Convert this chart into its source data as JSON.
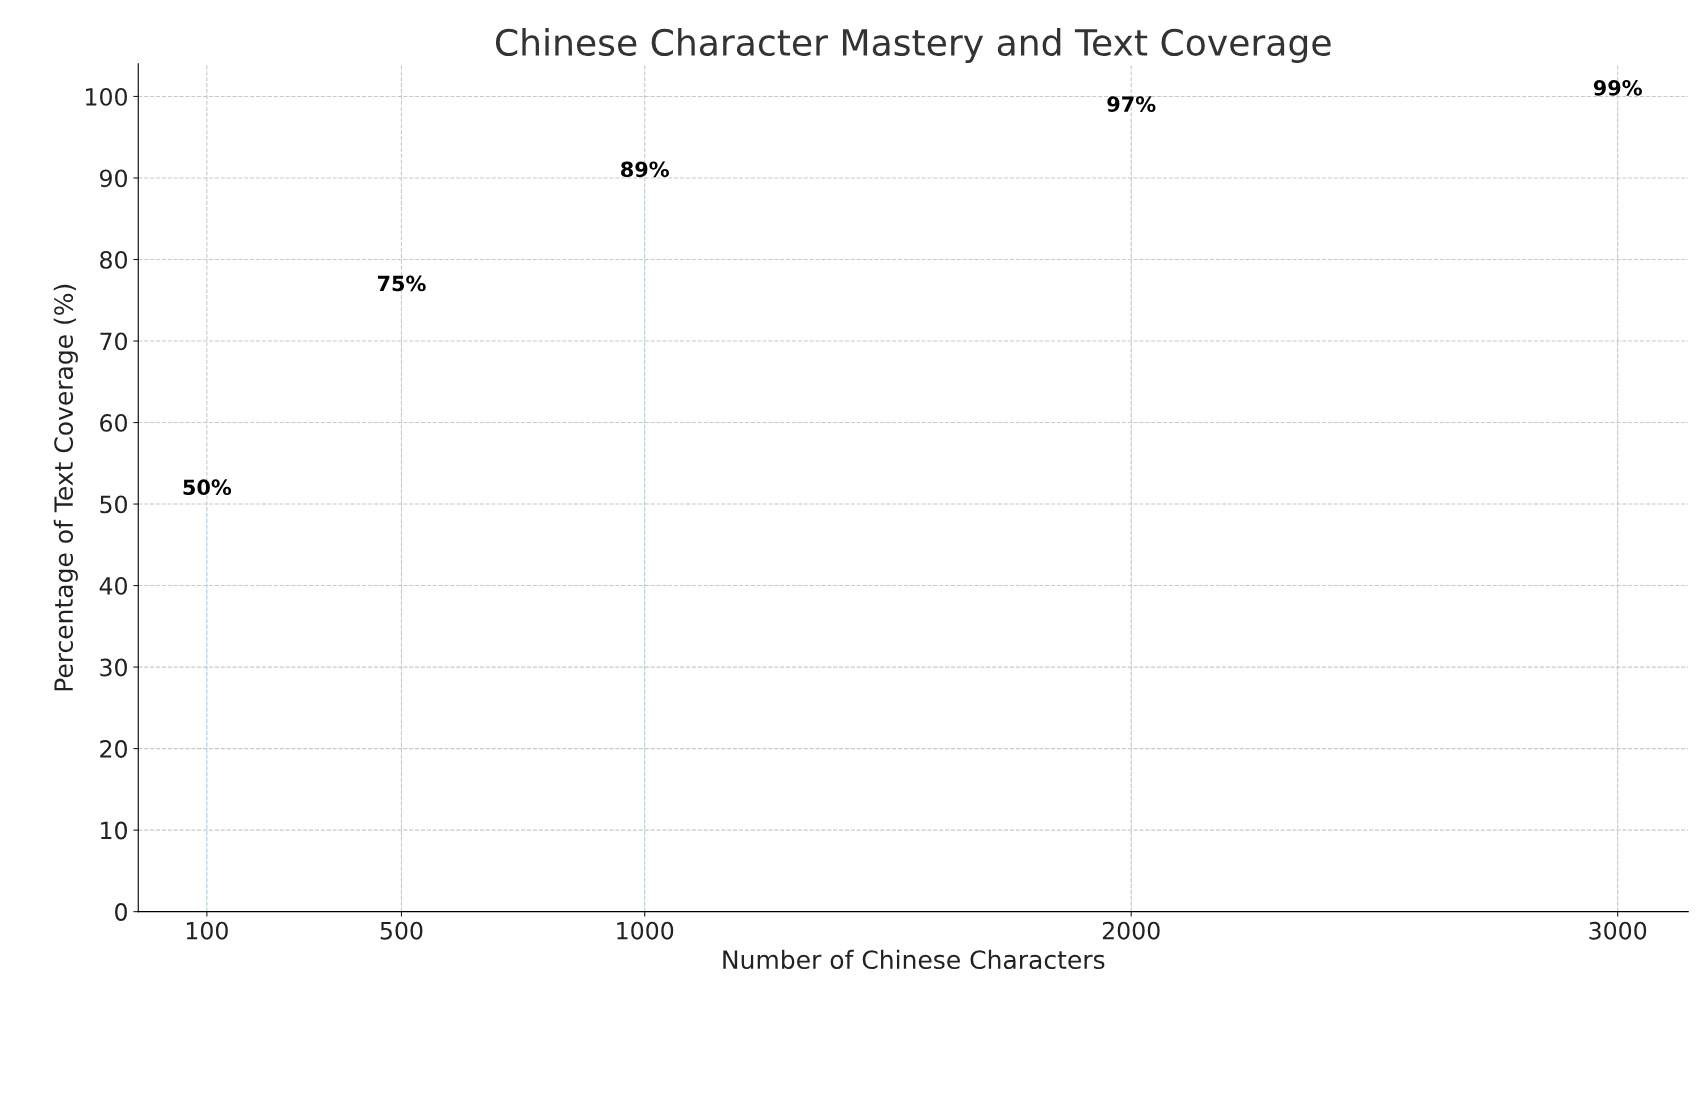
{
  "chart_data": {
    "type": "bar",
    "title": "Chinese Character Mastery and Text Coverage",
    "xlabel": "Number of Chinese Characters",
    "ylabel": "Percentage of Text Coverage (%)",
    "x": [
      100,
      500,
      1000,
      2000,
      3000
    ],
    "series": [
      {
        "color": "#add8e6",
        "values": [
          50,
          75,
          89,
          97,
          99
        ],
        "value_labels": [
          "50%",
          "75%",
          "89%",
          "97%",
          "99%"
        ]
      }
    ],
    "xlim": [
      -41,
      3145
    ],
    "xticks": [
      100,
      500,
      1000,
      2000,
      3000
    ],
    "ylim": [
      0,
      104
    ],
    "yticks": [
      0,
      10,
      20,
      30,
      40,
      50,
      60,
      70,
      80,
      90,
      100
    ],
    "grid": true,
    "line_style": "dashed"
  }
}
